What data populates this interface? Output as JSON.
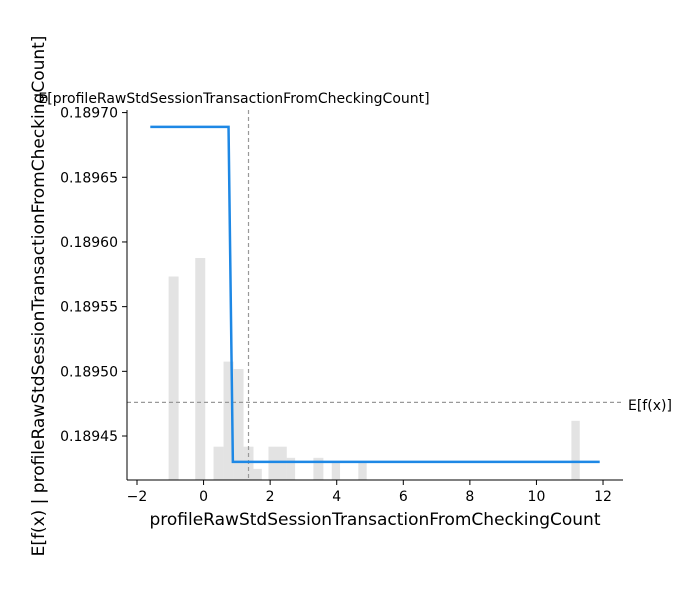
{
  "chart_data": {
    "type": "line",
    "title": "",
    "xlabel": "profileRawStdSessionTransactionFromCheckingCount",
    "ylabel": "E[f(x) | profileRawStdSessionTransactionFromCheckingCount]",
    "xlim": [
      -2.3,
      12.6
    ],
    "ylim": [
      0.189416,
      0.189702
    ],
    "x_ticks": [
      -2,
      0,
      2,
      4,
      6,
      8,
      10,
      12
    ],
    "x_tick_labels": [
      "−2",
      "0",
      "2",
      "4",
      "6",
      "8",
      "10",
      "12"
    ],
    "y_ticks": [
      0.18945,
      0.1895,
      0.18955,
      0.1896,
      0.18965,
      0.1897
    ],
    "y_tick_labels": [
      "0.18945",
      "0.18950",
      "0.18955",
      "0.18960",
      "0.18965",
      "0.18970"
    ],
    "series": [
      {
        "color": "#1e88e5",
        "x": [
          -1.6,
          0.75,
          0.88,
          11.9
        ],
        "y": [
          0.189689,
          0.189689,
          0.18943,
          0.18943
        ]
      }
    ],
    "expected_value_line": {
      "y": 0.189476,
      "label": "E[f(x)]"
    },
    "expected_feature_line": {
      "x": 1.35,
      "label": "E[profileRawStdSessionTransactionFromCheckingCount]"
    },
    "histogram": {
      "color": "#cccccc",
      "bins": [
        {
          "x0": -1.05,
          "x1": -0.75,
          "height": 0.55
        },
        {
          "x0": -0.25,
          "x1": 0.05,
          "height": 0.6
        },
        {
          "x0": 0.3,
          "x1": 0.6,
          "height": 0.09
        },
        {
          "x0": 0.6,
          "x1": 0.9,
          "height": 0.32
        },
        {
          "x0": 0.9,
          "x1": 1.2,
          "height": 0.3
        },
        {
          "x0": 1.2,
          "x1": 1.5,
          "height": 0.09
        },
        {
          "x0": 1.5,
          "x1": 1.75,
          "height": 0.03
        },
        {
          "x0": 1.95,
          "x1": 2.5,
          "height": 0.09
        },
        {
          "x0": 2.5,
          "x1": 2.75,
          "height": 0.06
        },
        {
          "x0": 3.3,
          "x1": 3.6,
          "height": 0.06
        },
        {
          "x0": 3.85,
          "x1": 4.1,
          "height": 0.05
        },
        {
          "x0": 4.65,
          "x1": 4.9,
          "height": 0.05
        },
        {
          "x0": 11.05,
          "x1": 11.3,
          "height": 0.16
        }
      ]
    },
    "grid": false,
    "legend": "none"
  }
}
